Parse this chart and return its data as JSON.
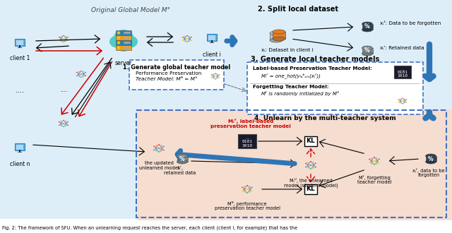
{
  "fig_width": 6.4,
  "fig_height": 3.3,
  "dpi": 100,
  "bg_light_blue": "#ddeef8",
  "bg_salmon": "#f5ddd0",
  "caption": "Fig. 2: The framework of SFU. When an unlearning request reaches the server, each client (client i, for example) that has the",
  "title_main": "Original Global Model M°",
  "step1_title": "1. Generate global teacher model",
  "step2_title": "2. Split local dataset",
  "step3_title": "3. Generate local teacher models",
  "step4_title": "4. Unlearn by the multi-teacher system",
  "label_client1": "client 1",
  "label_server": "server",
  "label_clienti": "client i",
  "label_clientn": "client n",
  "label_xi": "xᵢ: Dataset in client i",
  "label_xif_top": "xᵢᶠ: Data to be forgotten",
  "label_xir_top": "xᵢʳ: Retained data",
  "label_lb_title": "Label-based Preservation Teacher Model:",
  "label_lb_formula": "Mᵢᶠ = one_hot(yₗₐᵇₑₗₛ(xᵢᶠ))",
  "label_ft_title": "Forgetting Teacher Model:",
  "label_ft_text": "Mᶠ is randomly initialized by M°",
  "step1_text1": "Performance Preservation",
  "step1_text2": "Teacher Model: Mᴺ = M°",
  "label_label_based_top": "Mᵢᶠ, label-based",
  "label_label_based_bot": "preservation teacher model",
  "label_unlearned1": "Mᵢᵁ, the unlearned",
  "label_unlearned2": "model (student model)",
  "label_performance1": "Mᴺ, performance",
  "label_performance2": "preservation teacher model",
  "label_forgetting1": "Mᶠ, forgetting",
  "label_forgetting2": "teacher model",
  "label_updated1": "the updated",
  "label_updated2": "unlearned model",
  "label_retained1": "xᵢʳ,",
  "label_retained2": "retained data",
  "label_forgotten_r1": "xᵢᶠ, data to be",
  "label_forgotten_r2": "forgotten",
  "KL_label": "KL",
  "color_dashed_blue": "#4472c4",
  "color_red": "#cc0000",
  "color_blue_arrow": "#2e75b6"
}
